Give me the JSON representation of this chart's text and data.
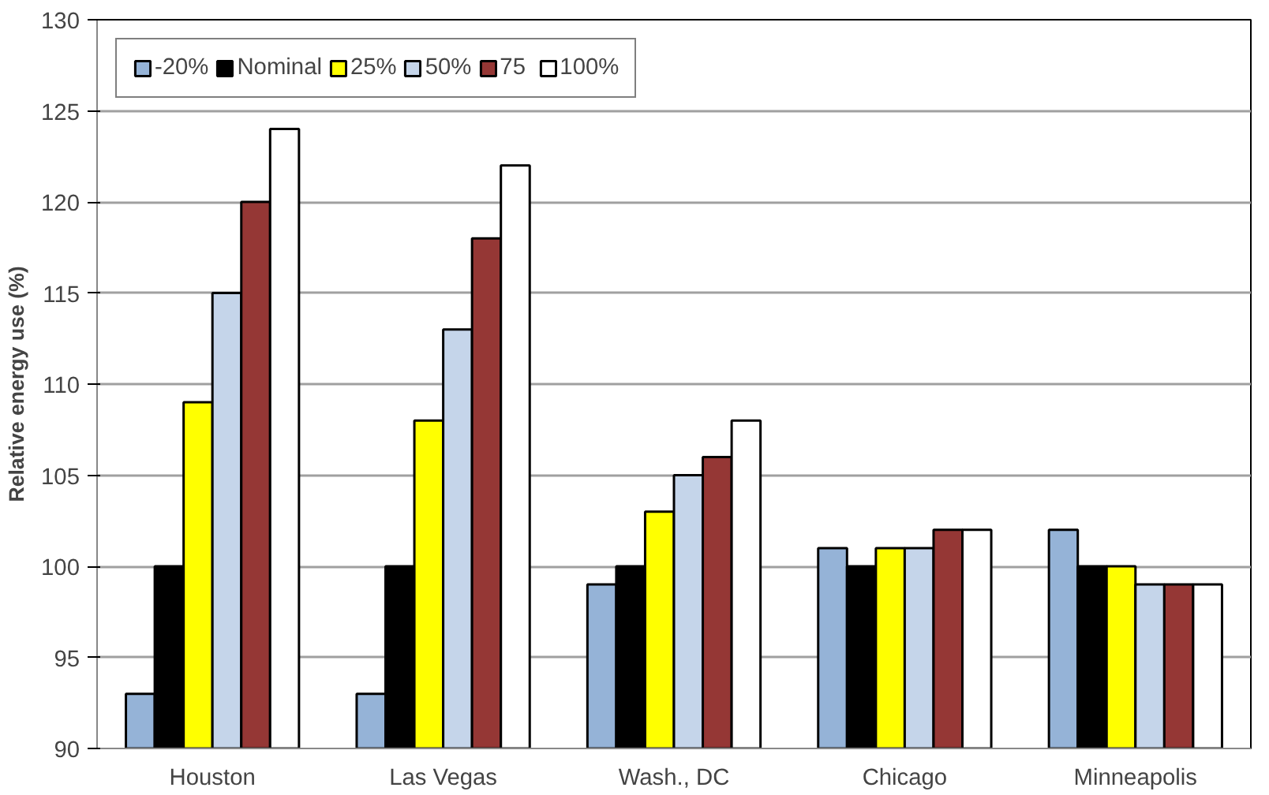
{
  "chart_data": {
    "type": "bar",
    "ylabel": "Relative energy use (%)",
    "categories": [
      "Houston",
      "Las Vegas",
      "Wash., DC",
      "Chicago",
      "Minneapolis"
    ],
    "series": [
      {
        "name": "-20%",
        "color": "#95b3d7",
        "values": [
          93,
          93,
          99,
          101,
          102
        ]
      },
      {
        "name": "Nominal",
        "color": "#000000",
        "values": [
          100,
          100,
          100,
          100,
          100
        ]
      },
      {
        "name": "25%",
        "color": "#ffff00",
        "values": [
          109,
          108,
          103,
          101,
          100
        ]
      },
      {
        "name": "50%",
        "color": "#c5d5ea",
        "values": [
          115,
          113,
          105,
          101,
          99
        ]
      },
      {
        "name": "75",
        "color": "#953735",
        "values": [
          120,
          118,
          106,
          102,
          99
        ]
      },
      {
        "name": "100%",
        "color": "#ffffff",
        "values": [
          124,
          122,
          108,
          102,
          99
        ]
      }
    ],
    "ylim": [
      90,
      130
    ],
    "yticks": [
      90,
      95,
      100,
      105,
      110,
      115,
      120,
      125,
      130
    ],
    "grid": "y",
    "legend": "top left"
  }
}
